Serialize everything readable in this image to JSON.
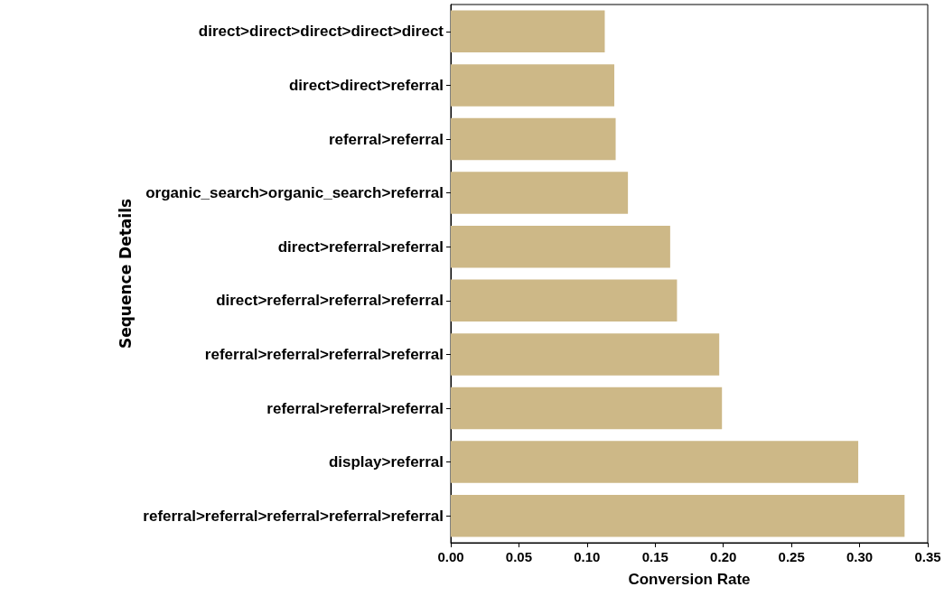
{
  "chart_data": {
    "type": "bar",
    "orientation": "horizontal",
    "xlabel": "Conversion Rate",
    "ylabel": "Sequence Details",
    "categories": [
      "direct>direct>direct>direct>direct",
      "direct>direct>referral",
      "referral>referral",
      "organic_search>organic_search>referral",
      "direct>referral>referral",
      "direct>referral>referral>referral",
      "referral>referral>referral>referral",
      "referral>referral>referral",
      "display>referral",
      "referral>referral>referral>referral>referral"
    ],
    "values": [
      0.113,
      0.12,
      0.121,
      0.13,
      0.161,
      0.166,
      0.197,
      0.199,
      0.299,
      0.333
    ],
    "color": "#cdb887",
    "xlim": [
      0,
      0.35
    ],
    "xticks": [
      {
        "value": 0,
        "label": "0.00"
      },
      {
        "value": 0.05,
        "label": "0.05"
      },
      {
        "value": 0.1,
        "label": "0.10"
      },
      {
        "value": 0.15,
        "label": "0.15"
      },
      {
        "value": 0.2,
        "label": "0.20"
      },
      {
        "value": 0.25,
        "label": "0.25"
      },
      {
        "value": 0.3,
        "label": "0.30"
      },
      {
        "value": 0.35,
        "label": "0.35"
      }
    ],
    "grid": false
  }
}
